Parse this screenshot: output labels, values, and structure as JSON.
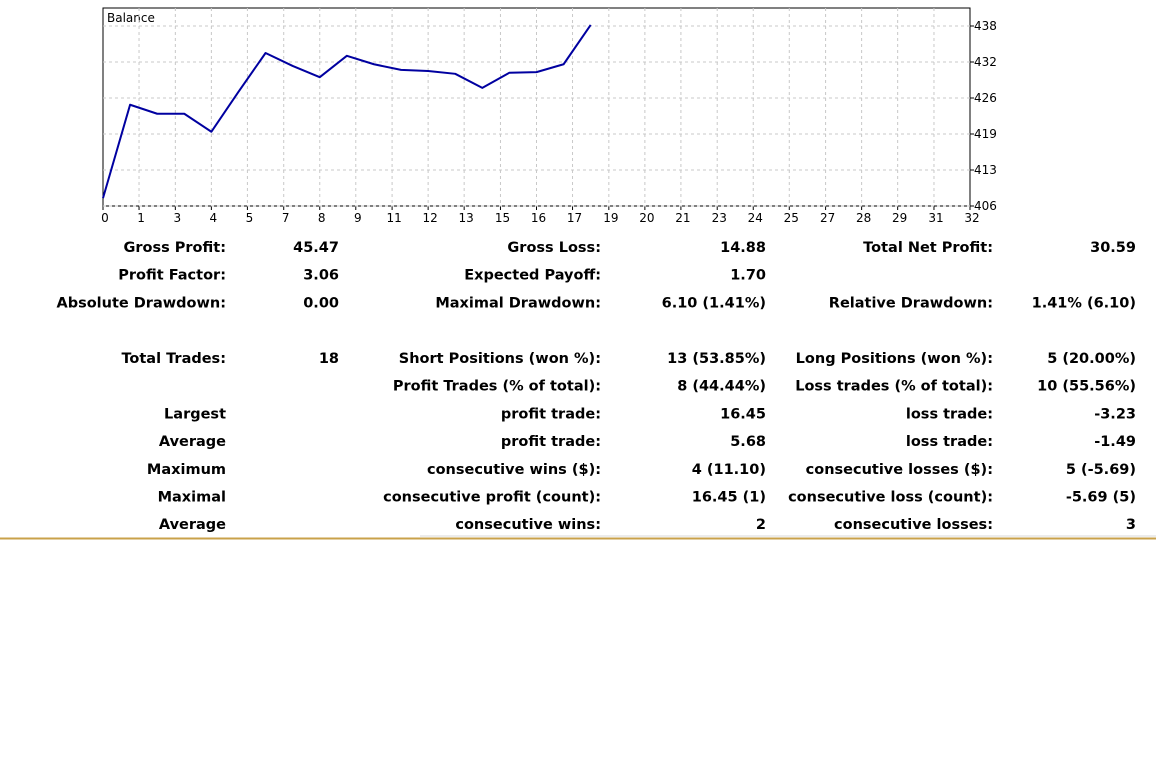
{
  "chart_data": {
    "type": "line",
    "title": "Balance",
    "x": [
      0,
      1,
      2,
      3,
      4,
      5,
      6,
      7,
      8,
      9,
      10,
      11,
      12,
      13,
      14,
      15,
      16,
      17,
      18
    ],
    "series": [
      {
        "name": "Balance",
        "color": "#0000a0",
        "values": [
          407.7,
          424.3,
          422.7,
          422.7,
          419.5,
          426.6,
          433.5,
          431.2,
          429.2,
          433.0,
          431.5,
          430.5,
          430.3,
          429.8,
          427.3,
          430.0,
          430.1,
          431.5,
          438.5
        ]
      }
    ],
    "xlim": [
      0,
      32
    ],
    "xticks": [
      0,
      {
        "value": 1.33,
        "label": "1"
      },
      {
        "value": 2.67,
        "label": "3"
      },
      4,
      {
        "value": 5.33,
        "label": "5"
      },
      {
        "value": 6.67,
        "label": "7"
      },
      8,
      {
        "value": 9.33,
        "label": "9"
      },
      {
        "value": 10.67,
        "label": "11"
      },
      12,
      {
        "value": 13.33,
        "label": "13"
      },
      {
        "value": 14.67,
        "label": "15"
      },
      16,
      {
        "value": 17.33,
        "label": "17"
      },
      {
        "value": 18.67,
        "label": "19"
      },
      20,
      {
        "value": 21.33,
        "label": "21"
      },
      {
        "value": 22.67,
        "label": "23"
      },
      24,
      {
        "value": 25.33,
        "label": "25"
      },
      {
        "value": 26.67,
        "label": "27"
      },
      28,
      {
        "value": 29.33,
        "label": "29"
      },
      {
        "value": 30.67,
        "label": "31"
      },
      32
    ],
    "ylim": [
      406.3,
      441.5
    ],
    "yticks": [
      {
        "value": 406.3,
        "label": "406"
      },
      {
        "value": 412.7,
        "label": "413"
      },
      {
        "value": 419.1,
        "label": "419"
      },
      {
        "value": 425.5,
        "label": "426"
      },
      {
        "value": 431.9,
        "label": "432"
      },
      {
        "value": 438.3,
        "label": "438"
      }
    ],
    "grid": true
  },
  "report": {
    "sections": [
      [
        [
          "Gross Profit:",
          "45.47",
          "Gross Loss:",
          "14.88",
          "Total Net Profit:",
          "30.59"
        ],
        [
          "Profit Factor:",
          "3.06",
          "Expected Payoff:",
          "1.70",
          null,
          null
        ],
        [
          "Absolute Drawdown:",
          "0.00",
          "Maximal Drawdown:",
          "6.10 (1.41%)",
          "Relative Drawdown:",
          "1.41% (6.10)"
        ]
      ],
      [
        [
          "Total Trades:",
          "18",
          "Short Positions (won %):",
          "13 (53.85%)",
          "Long Positions (won %):",
          "5 (20.00%)"
        ],
        [
          null,
          null,
          "Profit Trades (% of total):",
          "8 (44.44%)",
          "Loss trades (% of total):",
          "10 (55.56%)"
        ],
        [
          "Largest",
          null,
          "profit trade:",
          "16.45",
          "loss trade:",
          "-3.23"
        ],
        [
          "Average",
          null,
          "profit trade:",
          "5.68",
          "loss trade:",
          "-1.49"
        ],
        [
          "Maximum",
          null,
          "consecutive wins ($):",
          "4 (11.10)",
          "consecutive losses ($):",
          "5 (-5.69)"
        ],
        [
          "Maximal",
          null,
          "consecutive profit (count):",
          "16.45 (1)",
          "consecutive loss (count):",
          "-5.69 (5)"
        ],
        [
          "Average",
          null,
          "consecutive wins:",
          "2",
          "consecutive losses:",
          "3"
        ]
      ]
    ]
  }
}
